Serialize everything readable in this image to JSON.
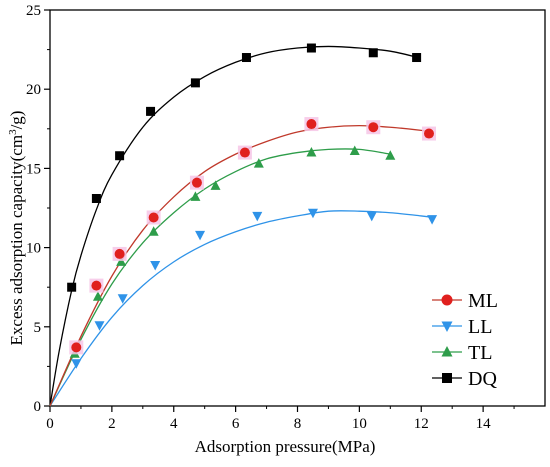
{
  "chart_data": {
    "type": "scatter",
    "xlabel": "Adsorption pressure(MPa)",
    "ylabel_parts": {
      "prefix": "Excess adsorption capacity(cm",
      "superscript": "3",
      "suffix": "/g)"
    },
    "xlim": [
      0,
      16
    ],
    "ylim": [
      0,
      25
    ],
    "x_ticks": [
      0,
      2,
      4,
      6,
      8,
      10,
      12,
      14
    ],
    "y_ticks": [
      0,
      5,
      10,
      15,
      20,
      25
    ],
    "legend_position": "lower-right",
    "grid": false,
    "series": [
      {
        "name": "ML",
        "marker": "circle",
        "color": "#e0201e",
        "line_color": "#c0392b",
        "halo_color": "#f6c6e6",
        "points": [
          [
            0.85,
            3.7
          ],
          [
            1.5,
            7.6
          ],
          [
            2.25,
            9.6
          ],
          [
            3.35,
            11.9
          ],
          [
            4.75,
            14.1
          ],
          [
            6.3,
            16.0
          ],
          [
            8.45,
            17.8
          ],
          [
            10.45,
            17.6
          ],
          [
            12.25,
            17.2
          ]
        ],
        "fit": [
          [
            0,
            0
          ],
          [
            1,
            4.4
          ],
          [
            2,
            8.2
          ],
          [
            3,
            11.1
          ],
          [
            4,
            13.2
          ],
          [
            5,
            14.8
          ],
          [
            6,
            15.9
          ],
          [
            7,
            16.7
          ],
          [
            8,
            17.3
          ],
          [
            9,
            17.6
          ],
          [
            10,
            17.7
          ],
          [
            11,
            17.6
          ],
          [
            12,
            17.4
          ],
          [
            12.3,
            17.3
          ]
        ]
      },
      {
        "name": "LL",
        "marker": "triangle-down",
        "color": "#2f93e8",
        "line_color": "#2f93e8",
        "points": [
          [
            0.85,
            2.7
          ],
          [
            1.6,
            5.1
          ],
          [
            2.35,
            6.8
          ],
          [
            3.4,
            8.9
          ],
          [
            4.85,
            10.8
          ],
          [
            6.7,
            12.0
          ],
          [
            8.5,
            12.2
          ],
          [
            10.4,
            12.0
          ],
          [
            12.35,
            11.8
          ]
        ],
        "fit": [
          [
            0,
            0
          ],
          [
            1,
            3.0
          ],
          [
            2,
            5.6
          ],
          [
            3,
            7.6
          ],
          [
            4,
            9.1
          ],
          [
            5,
            10.2
          ],
          [
            6,
            11.0
          ],
          [
            7,
            11.6
          ],
          [
            8,
            12.0
          ],
          [
            9,
            12.3
          ],
          [
            10,
            12.3
          ],
          [
            11,
            12.2
          ],
          [
            12,
            12.0
          ],
          [
            12.4,
            11.9
          ]
        ]
      },
      {
        "name": "TL",
        "marker": "triangle-up",
        "color": "#2e9d4a",
        "line_color": "#2e9d4a",
        "points": [
          [
            0.8,
            3.3
          ],
          [
            1.55,
            6.9
          ],
          [
            2.3,
            9.1
          ],
          [
            3.35,
            11.0
          ],
          [
            4.7,
            13.2
          ],
          [
            5.35,
            13.9
          ],
          [
            6.75,
            15.3
          ],
          [
            8.45,
            16.0
          ],
          [
            9.85,
            16.1
          ],
          [
            11.0,
            15.8
          ]
        ],
        "fit": [
          [
            0,
            0
          ],
          [
            1,
            4.2
          ],
          [
            2,
            7.7
          ],
          [
            3,
            10.3
          ],
          [
            4,
            12.2
          ],
          [
            5,
            13.7
          ],
          [
            6,
            14.8
          ],
          [
            7,
            15.6
          ],
          [
            8,
            16.0
          ],
          [
            9,
            16.2
          ],
          [
            10,
            16.2
          ],
          [
            11,
            15.9
          ]
        ]
      },
      {
        "name": "DQ",
        "marker": "square",
        "color": "#000000",
        "line_color": "#000000",
        "points": [
          [
            0.7,
            7.5
          ],
          [
            1.5,
            13.1
          ],
          [
            2.25,
            15.8
          ],
          [
            3.25,
            18.6
          ],
          [
            4.7,
            20.4
          ],
          [
            6.35,
            22.0
          ],
          [
            8.45,
            22.6
          ],
          [
            10.45,
            22.3
          ],
          [
            11.85,
            22.0
          ]
        ],
        "fit": [
          [
            0,
            0
          ],
          [
            0.3,
            3.5
          ],
          [
            0.7,
            7.3
          ],
          [
            1,
            9.5
          ],
          [
            1.5,
            12.4
          ],
          [
            2,
            14.6
          ],
          [
            3,
            17.6
          ],
          [
            4,
            19.5
          ],
          [
            5,
            20.8
          ],
          [
            6,
            21.7
          ],
          [
            7,
            22.3
          ],
          [
            8,
            22.6
          ],
          [
            9,
            22.7
          ],
          [
            10,
            22.6
          ],
          [
            11,
            22.4
          ],
          [
            11.9,
            22.0
          ]
        ]
      }
    ]
  }
}
